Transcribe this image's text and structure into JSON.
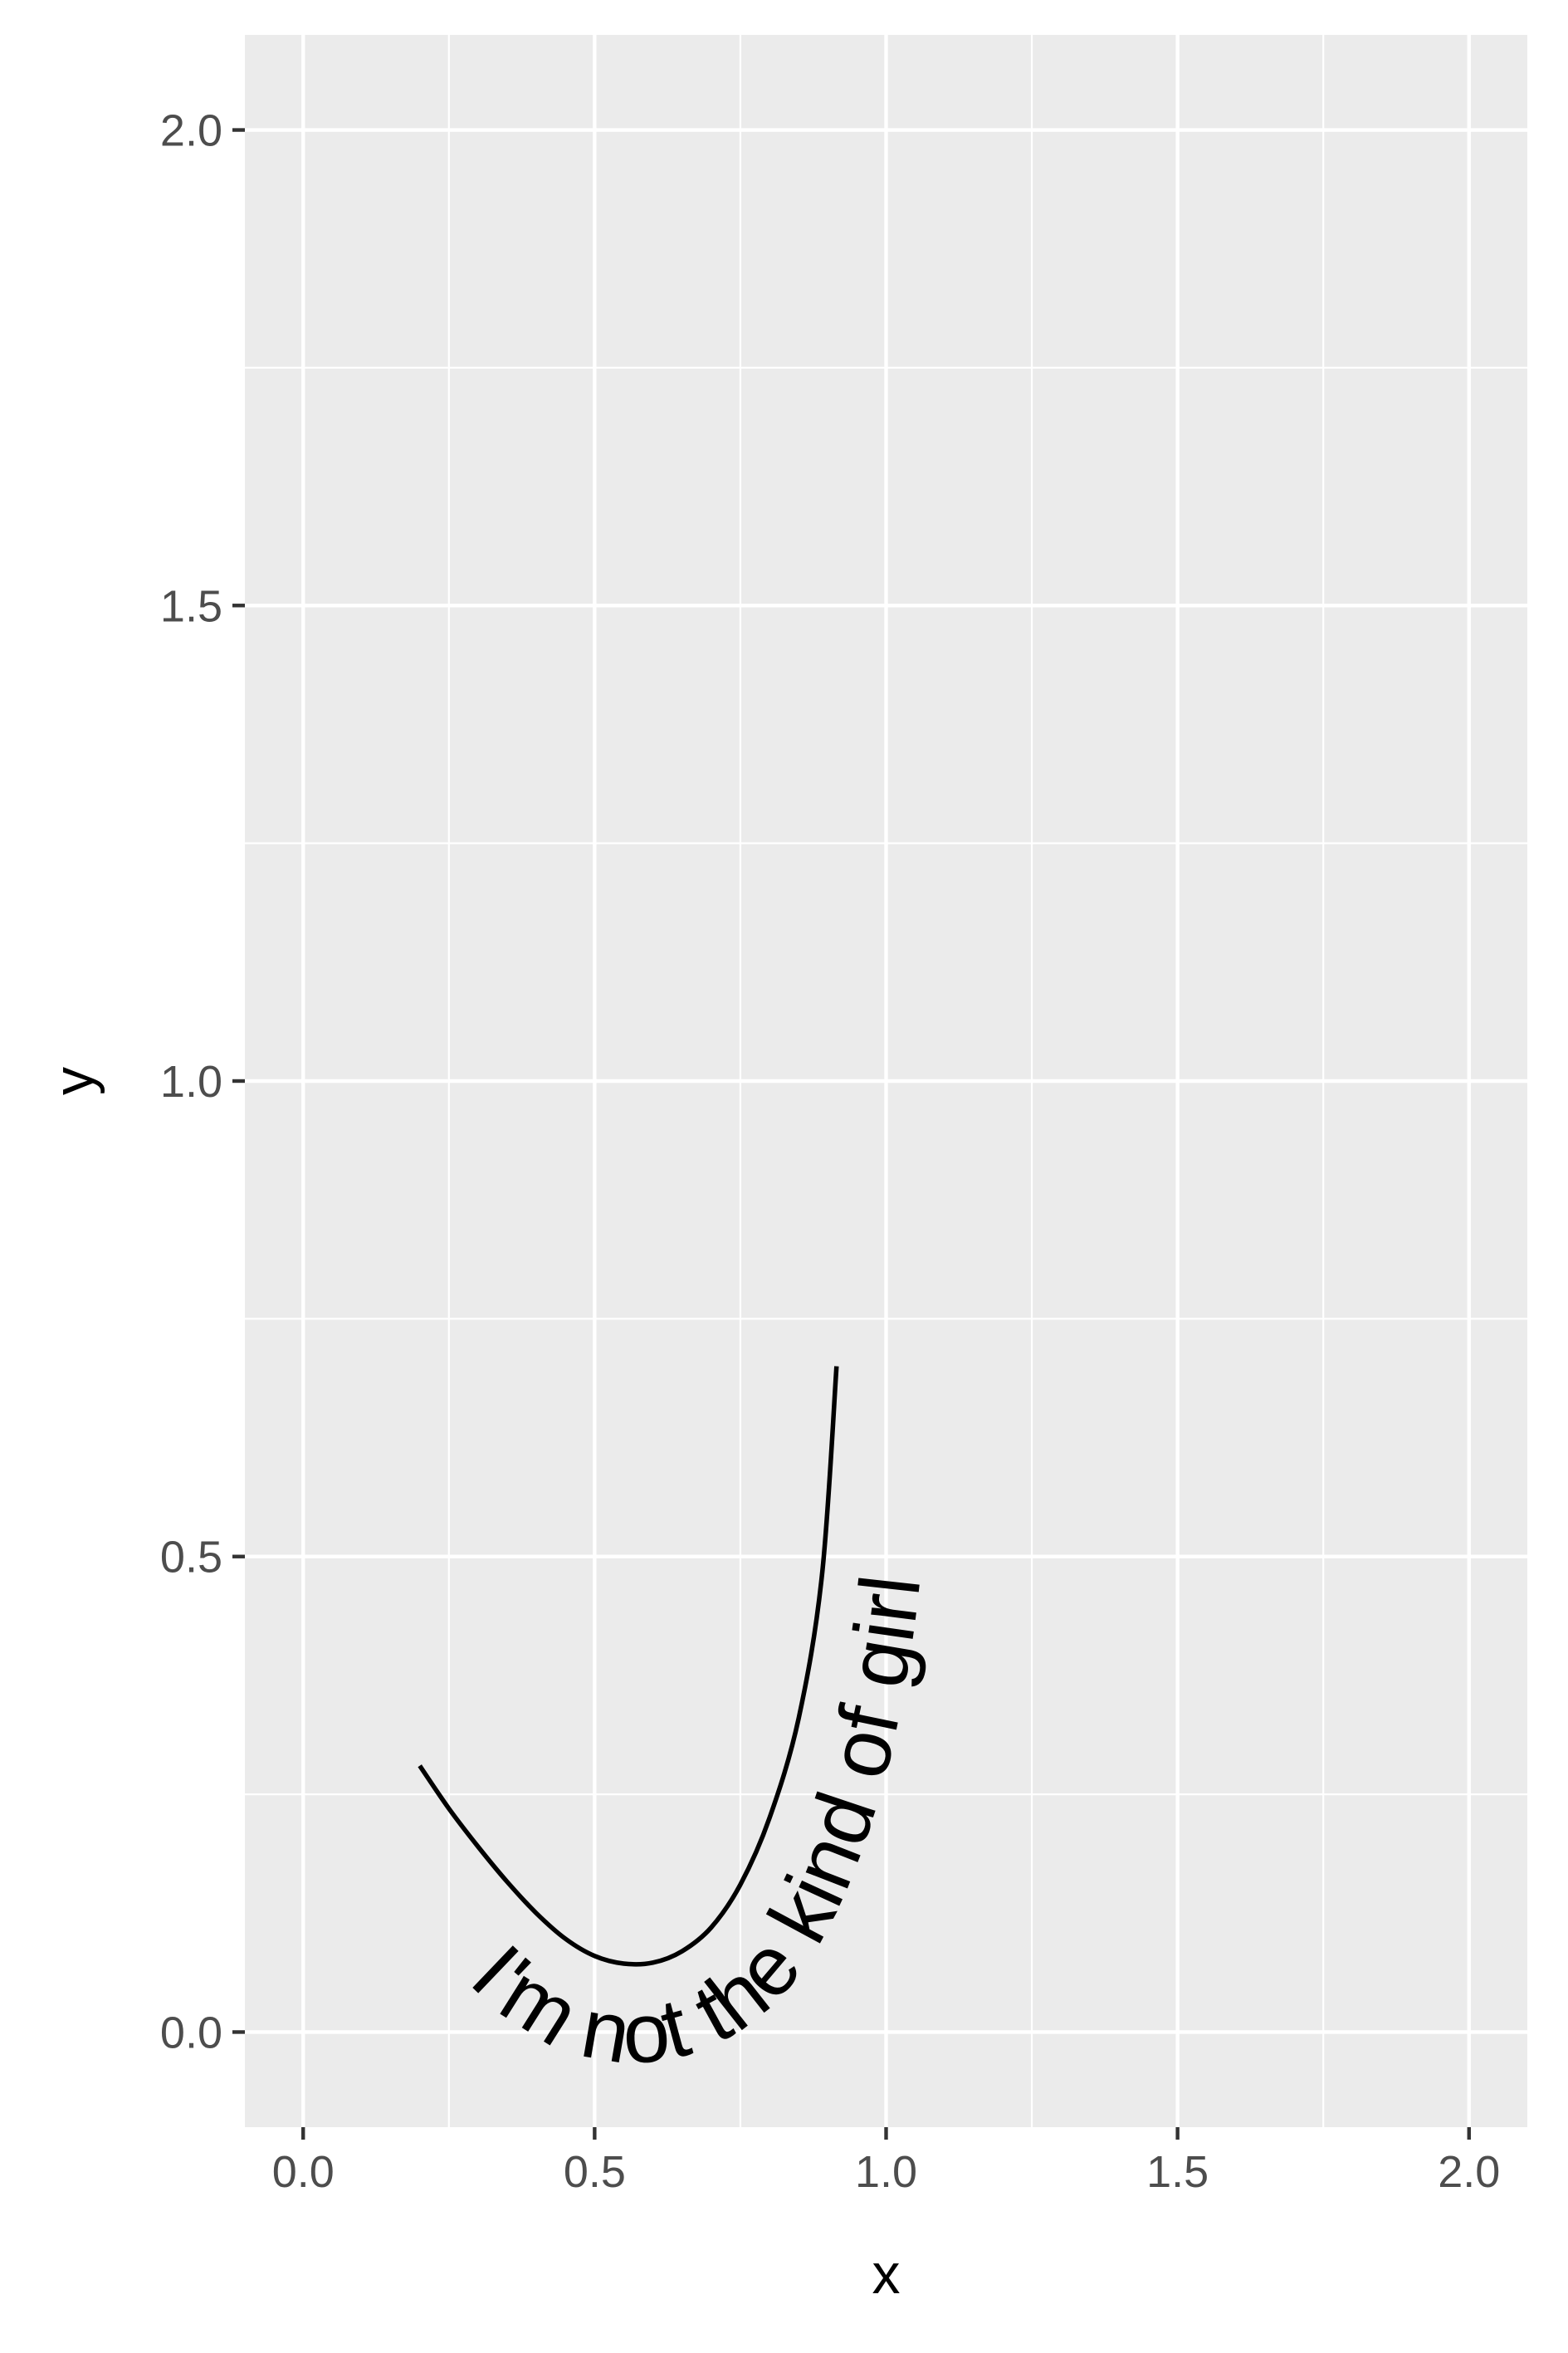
{
  "chart_data": {
    "type": "line",
    "xlabel": "x",
    "ylabel": "y",
    "xlim": [
      -0.1,
      2.1
    ],
    "ylim": [
      -0.1,
      2.1
    ],
    "x_ticks": [
      0.0,
      0.5,
      1.0,
      1.5,
      2.0
    ],
    "x_tick_labels": [
      "0.0",
      "0.5",
      "1.0",
      "1.5",
      "2.0"
    ],
    "y_ticks": [
      0.0,
      0.5,
      1.0,
      1.5,
      2.0
    ],
    "y_tick_labels": [
      "0.0",
      "0.5",
      "1.0",
      "1.5",
      "2.0"
    ],
    "x_minor_ticks": [
      0.25,
      0.75,
      1.25,
      1.75
    ],
    "y_minor_ticks": [
      0.25,
      0.75,
      1.25,
      1.75
    ],
    "grid": true,
    "series": [
      {
        "label": "I'm not the kind of girl",
        "color": "#000000",
        "points": [
          {
            "x": 0.2,
            "y": 0.28
          },
          {
            "x": 0.25,
            "y": 0.235
          },
          {
            "x": 0.3,
            "y": 0.195
          },
          {
            "x": 0.35,
            "y": 0.158
          },
          {
            "x": 0.4,
            "y": 0.125
          },
          {
            "x": 0.45,
            "y": 0.098
          },
          {
            "x": 0.5,
            "y": 0.08
          },
          {
            "x": 0.55,
            "y": 0.072
          },
          {
            "x": 0.6,
            "y": 0.073
          },
          {
            "x": 0.65,
            "y": 0.085
          },
          {
            "x": 0.7,
            "y": 0.11
          },
          {
            "x": 0.75,
            "y": 0.155
          },
          {
            "x": 0.8,
            "y": 0.225
          },
          {
            "x": 0.85,
            "y": 0.33
          },
          {
            "x": 0.89,
            "y": 0.48
          },
          {
            "x": 0.915,
            "y": 0.7
          }
        ]
      }
    ],
    "background": "#ebebeb",
    "gridline_color": "#ffffff"
  }
}
